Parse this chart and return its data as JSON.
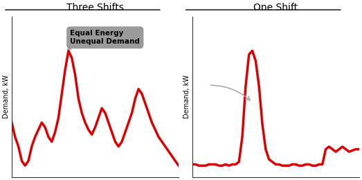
{
  "title_left": "Three Shifts",
  "title_right": "One Shift",
  "ylabel": "Demand, kW",
  "annotation_text": "Equal Energy\nUnequal Demand",
  "line_color": "#DD0000",
  "line_width": 2.5,
  "bg_color": "#ffffff",
  "box_color": "#888888",
  "annotation_text_color": "#000000",
  "three_shifts_x": [
    0,
    2,
    4,
    6,
    8,
    10,
    12,
    14,
    16,
    18,
    20,
    22,
    24,
    26,
    28,
    30,
    32,
    34,
    36,
    38,
    40,
    42,
    44,
    46,
    48,
    50,
    52,
    54,
    56,
    58,
    60,
    62,
    64,
    66,
    68,
    70,
    72,
    74,
    76,
    78,
    80,
    82,
    84,
    86,
    88,
    90,
    92,
    94,
    96,
    98,
    100
  ],
  "three_shifts_y": [
    38,
    32,
    28,
    22,
    20,
    22,
    28,
    32,
    35,
    38,
    36,
    32,
    30,
    34,
    40,
    50,
    60,
    68,
    65,
    58,
    48,
    42,
    38,
    35,
    33,
    36,
    40,
    44,
    42,
    38,
    34,
    30,
    28,
    30,
    34,
    38,
    42,
    48,
    52,
    50,
    46,
    42,
    38,
    35,
    32,
    30,
    28,
    26,
    24,
    22,
    20
  ],
  "one_shift_x": [
    0,
    2,
    4,
    6,
    8,
    10,
    12,
    14,
    16,
    18,
    20,
    22,
    24,
    26,
    28,
    30,
    32,
    34,
    36,
    38,
    40,
    42,
    44,
    46,
    48,
    50,
    52,
    54,
    56,
    58,
    60,
    62,
    64,
    66,
    68,
    70,
    72,
    74,
    76,
    78,
    80,
    82,
    84,
    86,
    88,
    90,
    92,
    94,
    96,
    98,
    100
  ],
  "one_shift_y": [
    8,
    8,
    7,
    7,
    7,
    8,
    8,
    8,
    7,
    7,
    8,
    7,
    8,
    8,
    10,
    30,
    70,
    95,
    98,
    90,
    70,
    40,
    20,
    12,
    10,
    8,
    8,
    7,
    7,
    7,
    8,
    8,
    7,
    7,
    8,
    8,
    7,
    7,
    8,
    8,
    20,
    22,
    20,
    18,
    20,
    22,
    20,
    18,
    19,
    20,
    20
  ]
}
